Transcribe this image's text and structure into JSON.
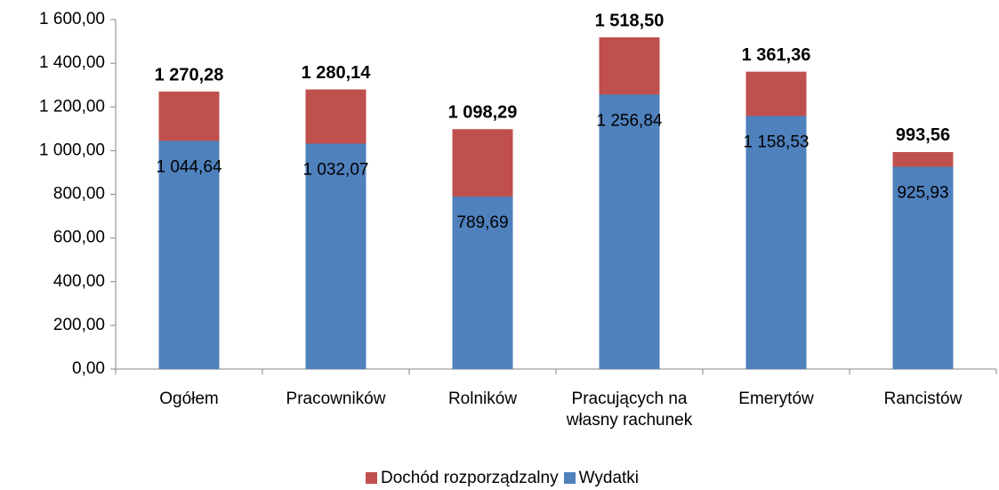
{
  "chart_data": {
    "type": "bar",
    "categories": [
      "Ogółem",
      "Pracowników",
      "Rolników",
      "Pracujących na własny rachunek",
      "Emerytów",
      "Rancistów"
    ],
    "series": [
      {
        "name": "Dochód rozporządzalny",
        "color": "#c0504d",
        "values": [
          1270.28,
          1280.14,
          1098.29,
          1518.5,
          1361.36,
          993.56
        ],
        "value_labels": [
          "1 270,28",
          "1 280,14",
          "1 098,29",
          "1 518,50",
          "1 361,36",
          "993,56"
        ]
      },
      {
        "name": "Wydatki",
        "color": "#4f81bd",
        "values": [
          1044.64,
          1032.07,
          789.69,
          1256.84,
          1158.53,
          925.93
        ],
        "value_labels": [
          "1 044,64",
          "1 032,07",
          "789,69",
          "1 256,84",
          "1 158,53",
          "925,93"
        ]
      }
    ],
    "ylim": [
      0,
      1600
    ],
    "yticks": [
      {
        "value": 0,
        "label": "0,00"
      },
      {
        "value": 200,
        "label": "200,00"
      },
      {
        "value": 400,
        "label": "400,00"
      },
      {
        "value": 600,
        "label": "600,00"
      },
      {
        "value": 800,
        "label": "800,00"
      },
      {
        "value": 1000,
        "label": "1 000,00"
      },
      {
        "value": 1200,
        "label": "1 200,00"
      },
      {
        "value": 1400,
        "label": "1 400,00"
      },
      {
        "value": 1600,
        "label": "1 600,00"
      }
    ],
    "legend": "bottom"
  }
}
